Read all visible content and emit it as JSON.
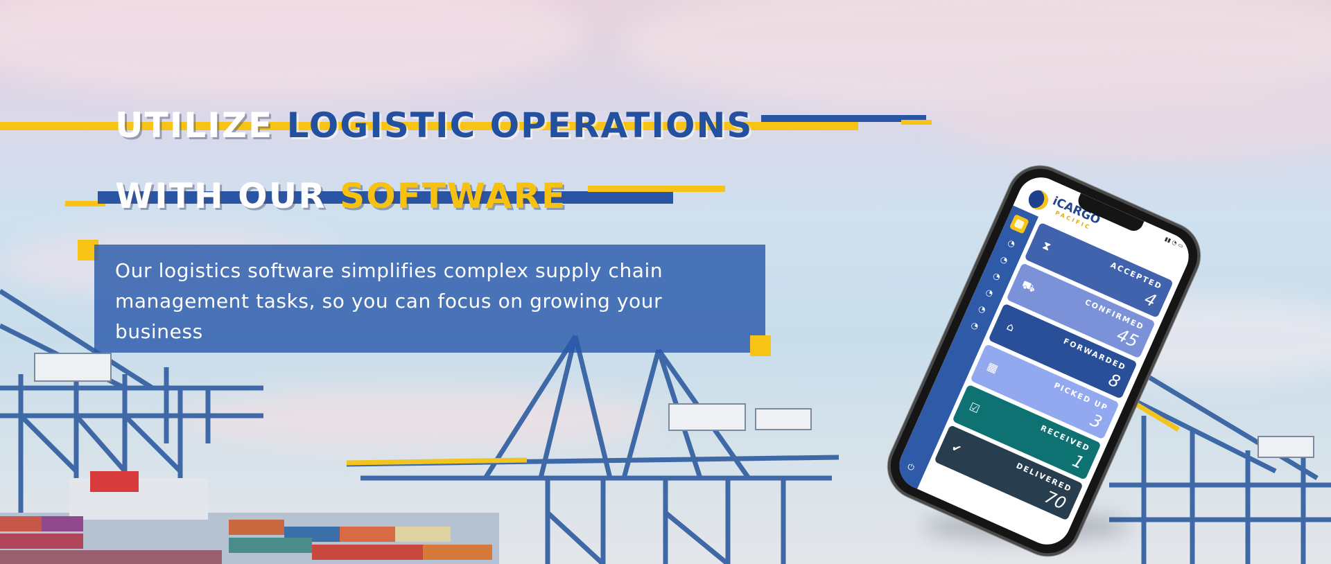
{
  "headline": {
    "line1": {
      "white": "UTILIZE",
      "blue": "LOGISTIC OPERATIONS"
    },
    "line2": {
      "white": "WITH OUR",
      "yellow": "SOFTWARE"
    }
  },
  "description": "Our logistics software simplifies complex supply chain management tasks, so you can focus on growing your business",
  "colors": {
    "brand_blue": "#23519f",
    "brand_yellow": "#f6c20f"
  },
  "phone_app": {
    "brand": "iCARGO",
    "brand_sub": "PACIFIC",
    "logo_icon": "globe-logo-icon",
    "sidebar_icons": [
      "dashboard-icon",
      "gauge-icon",
      "gauge-icon",
      "gauge-icon",
      "gauge-icon",
      "gauge-icon",
      "gauge-icon",
      "gauge-icon"
    ],
    "cards": [
      {
        "label": "ACCEPTED",
        "value": "4",
        "icon": "hourglass-icon",
        "color": "#4162ad"
      },
      {
        "label": "CONFIRMED",
        "value": "45",
        "icon": "forklift-icon",
        "color": "#7b92d8"
      },
      {
        "label": "FORWARDED",
        "value": "8",
        "icon": "warehouse-icon",
        "color": "#2a4f99"
      },
      {
        "label": "PICKED UP",
        "value": "3",
        "icon": "boxes-icon",
        "color": "#93a9ef"
      },
      {
        "label": "RECEIVED",
        "value": "1",
        "icon": "check-square-icon",
        "color": "#0f7272"
      },
      {
        "label": "DELIVERED",
        "value": "70",
        "icon": "user-check-icon",
        "color": "#283e4e"
      }
    ]
  }
}
